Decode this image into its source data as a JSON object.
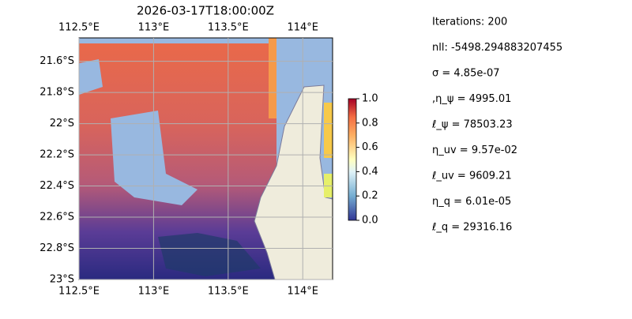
{
  "title": "2026-03-17T18:00:00Z",
  "map": {
    "xlim": [
      112.5,
      114.2
    ],
    "ylim": [
      -23,
      -21.45
    ],
    "xticks": [
      {
        "value": 112.5,
        "label": "112.5°E"
      },
      {
        "value": 113,
        "label": "113°E"
      },
      {
        "value": 113.5,
        "label": "113.5°E"
      },
      {
        "value": 114,
        "label": "114°E"
      }
    ],
    "yticks": [
      {
        "value": -21.6,
        "label": "21.6°S"
      },
      {
        "value": -21.8,
        "label": "21.8°S"
      },
      {
        "value": -22,
        "label": "22°S"
      },
      {
        "value": -22.2,
        "label": "22.2°S"
      },
      {
        "value": -22.4,
        "label": "22.4°S"
      },
      {
        "value": -22.6,
        "label": "22.6°S"
      },
      {
        "value": -22.8,
        "label": "22.8°S"
      },
      {
        "value": -23,
        "label": "23°S"
      }
    ],
    "grid": true
  },
  "colorbar": {
    "lim": [
      0,
      1
    ],
    "ticks": [
      {
        "value": 0,
        "label": "0.0"
      },
      {
        "value": 0.2,
        "label": "0.2"
      },
      {
        "value": 0.4,
        "label": "0.4"
      },
      {
        "value": 0.6,
        "label": "0.6"
      },
      {
        "value": 0.8,
        "label": "0.8"
      },
      {
        "value": 1,
        "label": "1.0"
      }
    ]
  },
  "stats": [
    "Iterations: 200",
    "nll: -5498.294883207455",
    "σ = 4.85e-07",
    ",η_ψ = 4995.01",
    "ℓ_ψ = 78503.23",
    "η_uv = 9.57e-02",
    "ℓ_uv = 9609.21",
    "η_q = 6.01e-05",
    "ℓ_q = 29316.16"
  ]
}
